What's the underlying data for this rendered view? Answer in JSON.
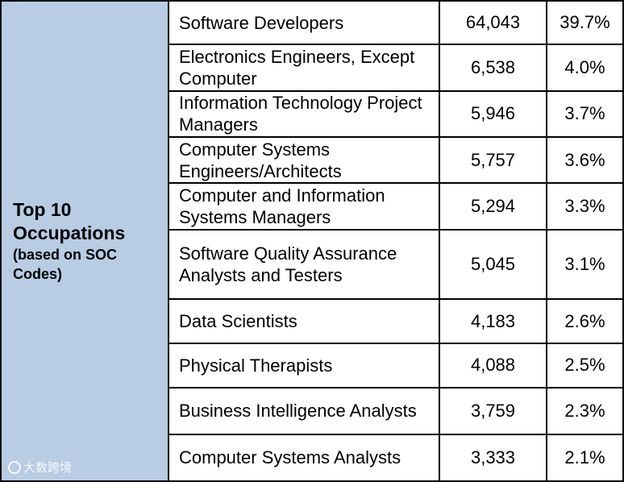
{
  "side_header": {
    "title_line1": "Top 10",
    "title_line2": "Occupations",
    "sub_line1": "(based on SOC",
    "sub_line2": "Codes)"
  },
  "watermark": "大数跨境",
  "rows": [
    {
      "name": "Software Developers",
      "count": "64,043",
      "percent": "39.7%"
    },
    {
      "name": "Electronics Engineers, Except Computer",
      "count": "6,538",
      "percent": "4.0%"
    },
    {
      "name": "Information Technology Project Managers",
      "count": "5,946",
      "percent": "3.7%"
    },
    {
      "name": "Computer Systems Engineers/Architects",
      "count": "5,757",
      "percent": "3.6%"
    },
    {
      "name": "Computer and Information Systems Managers",
      "count": "5,294",
      "percent": "3.3%"
    },
    {
      "name": "Software Quality Assurance Analysts and Testers",
      "count": "5,045",
      "percent": "3.1%"
    },
    {
      "name": "Data Scientists",
      "count": "4,183",
      "percent": "2.6%"
    },
    {
      "name": "Physical Therapists",
      "count": "4,088",
      "percent": "2.5%"
    },
    {
      "name": "Business Intelligence Analysts",
      "count": "3,759",
      "percent": "2.3%"
    },
    {
      "name": "Computer Systems Analysts",
      "count": "3,333",
      "percent": "2.1%"
    }
  ]
}
